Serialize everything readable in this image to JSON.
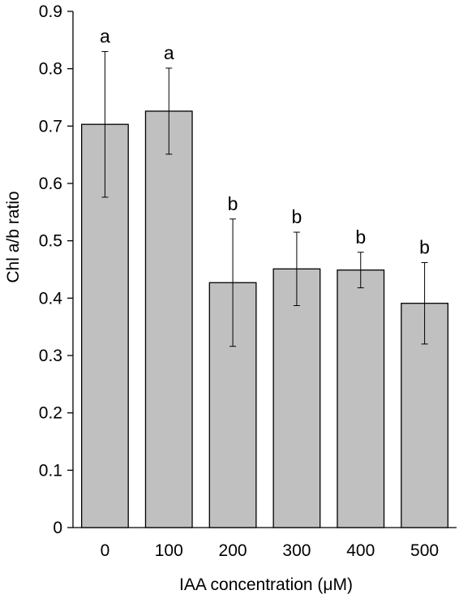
{
  "chart_data": {
    "type": "bar",
    "categories": [
      "0",
      "100",
      "200",
      "300",
      "400",
      "500"
    ],
    "series": [
      {
        "values": [
          0.703,
          0.726,
          0.427,
          0.451,
          0.449,
          0.391
        ],
        "error": [
          0.127,
          0.075,
          0.111,
          0.064,
          0.031,
          0.071
        ],
        "significance": [
          "a",
          "a",
          "b",
          "b",
          "b",
          "b"
        ]
      }
    ],
    "xlabel": "IAA concentration (μM)",
    "ylabel": "Chl a/b ratio",
    "ylim": [
      0,
      0.9
    ],
    "yticks": [
      "0",
      "0.1",
      "0.2",
      "0.3",
      "0.4",
      "0.5",
      "0.6",
      "0.7",
      "0.8",
      "0.9"
    ],
    "grid": false,
    "bar_color": "#c0c0c0",
    "edge_color": "#000000"
  }
}
